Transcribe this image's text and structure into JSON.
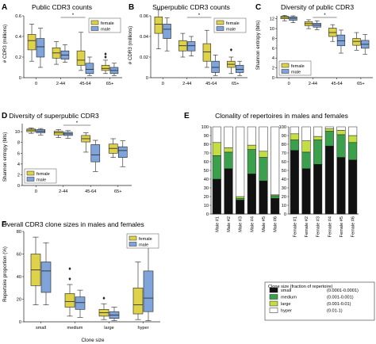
{
  "colors": {
    "female": "#ddd24a",
    "male": "#7fa4d9",
    "small": "#111111",
    "medium": "#3aa04b",
    "large": "#c3dd45",
    "hyper": "#ffffff"
  },
  "chart_data": [
    {
      "panel": "A",
      "type": "box",
      "title": "Public CDR3 counts",
      "xlabel": "",
      "ylabel": "# CDR3 (millions)",
      "categories": [
        "0",
        "2-44",
        "45-64",
        "65+"
      ],
      "ylim": [
        0,
        0.6
      ],
      "yticks": [
        0,
        0.2,
        0.4,
        0.6
      ],
      "grid": false,
      "legend": {
        "position": "top-right",
        "entries": [
          "female",
          "male"
        ]
      },
      "significance": {
        "between": [
          "2-44",
          "45-64"
        ],
        "label": "*"
      },
      "series": [
        {
          "name": "female",
          "boxes": [
            {
              "low": 0.16,
              "q1": 0.27,
              "median": 0.36,
              "q3": 0.42,
              "high": 0.52,
              "outliers": []
            },
            {
              "low": 0.13,
              "q1": 0.19,
              "median": 0.24,
              "q3": 0.29,
              "high": 0.35,
              "outliers": []
            },
            {
              "low": 0.07,
              "q1": 0.12,
              "median": 0.17,
              "q3": 0.26,
              "high": 0.44,
              "outliers": []
            },
            {
              "low": 0.04,
              "q1": 0.07,
              "median": 0.09,
              "q3": 0.12,
              "high": 0.17,
              "outliers": [
                0.2,
                0.23
              ]
            }
          ]
        },
        {
          "name": "male",
          "boxes": [
            {
              "low": 0.1,
              "q1": 0.2,
              "median": 0.3,
              "q3": 0.38,
              "high": 0.48,
              "outliers": []
            },
            {
              "low": 0.15,
              "q1": 0.18,
              "median": 0.22,
              "q3": 0.26,
              "high": 0.32,
              "outliers": []
            },
            {
              "low": 0.02,
              "q1": 0.04,
              "median": 0.08,
              "q3": 0.14,
              "high": 0.2,
              "outliers": []
            },
            {
              "low": 0.02,
              "q1": 0.04,
              "median": 0.07,
              "q3": 0.1,
              "high": 0.14,
              "outliers": []
            }
          ]
        }
      ]
    },
    {
      "panel": "B",
      "type": "box",
      "title": "Superpublic CDR3 counts",
      "xlabel": "",
      "ylabel": "# CDR3 (millions)",
      "categories": [
        "0",
        "2-44",
        "45-64",
        "65+"
      ],
      "ylim": [
        0,
        0.06
      ],
      "yticks": [
        0,
        0.02,
        0.04,
        0.06
      ],
      "grid": false,
      "legend": {
        "position": "top-right",
        "entries": [
          "female",
          "male"
        ]
      },
      "significance": {
        "between": [
          "2-44",
          "45-64"
        ],
        "label": "*"
      },
      "series": [
        {
          "name": "female",
          "boxes": [
            {
              "low": 0.028,
              "q1": 0.043,
              "median": 0.052,
              "q3": 0.059,
              "high": 0.066,
              "outliers": []
            },
            {
              "low": 0.02,
              "q1": 0.026,
              "median": 0.031,
              "q3": 0.036,
              "high": 0.043,
              "outliers": []
            },
            {
              "low": 0.01,
              "q1": 0.016,
              "median": 0.025,
              "q3": 0.033,
              "high": 0.046,
              "outliers": []
            },
            {
              "low": 0.004,
              "q1": 0.01,
              "median": 0.013,
              "q3": 0.016,
              "high": 0.02,
              "outliers": [
                0.027
              ]
            }
          ]
        },
        {
          "name": "male",
          "boxes": [
            {
              "low": 0.026,
              "q1": 0.038,
              "median": 0.047,
              "q3": 0.052,
              "high": 0.058,
              "outliers": []
            },
            {
              "low": 0.021,
              "q1": 0.026,
              "median": 0.031,
              "q3": 0.035,
              "high": 0.04,
              "outliers": []
            },
            {
              "low": 0.002,
              "q1": 0.005,
              "median": 0.01,
              "q3": 0.016,
              "high": 0.022,
              "outliers": []
            },
            {
              "low": 0.002,
              "q1": 0.005,
              "median": 0.008,
              "q3": 0.012,
              "high": 0.016,
              "outliers": []
            }
          ]
        }
      ]
    },
    {
      "panel": "C",
      "type": "box",
      "title": "Diversity of public CDR3",
      "xlabel": "",
      "ylabel": "Shannon entropy (bits)",
      "categories": [
        "0",
        "2-44",
        "45-64",
        "65+"
      ],
      "ylim": [
        0,
        12.6
      ],
      "yticks": [
        0,
        2,
        4,
        6,
        8,
        10,
        12
      ],
      "grid": false,
      "legend": {
        "position": "bottom-left",
        "entries": [
          "female",
          "male"
        ]
      },
      "significance": {
        "between": [
          "2-44",
          "45-64"
        ],
        "label": "*"
      },
      "series": [
        {
          "name": "female",
          "boxes": [
            {
              "low": 11.6,
              "q1": 12.0,
              "median": 12.3,
              "q3": 12.5,
              "high": 12.7,
              "outliers": []
            },
            {
              "low": 10.0,
              "q1": 10.6,
              "median": 11.0,
              "q3": 11.4,
              "high": 11.8,
              "outliers": []
            },
            {
              "low": 7.4,
              "q1": 8.4,
              "median": 9.2,
              "q3": 10.1,
              "high": 10.8,
              "outliers": []
            },
            {
              "low": 5.6,
              "q1": 6.6,
              "median": 7.4,
              "q3": 8.0,
              "high": 9.2,
              "outliers": []
            }
          ]
        },
        {
          "name": "male",
          "boxes": [
            {
              "low": 11.2,
              "q1": 11.7,
              "median": 12.1,
              "q3": 12.4,
              "high": 12.6,
              "outliers": []
            },
            {
              "low": 9.8,
              "q1": 10.3,
              "median": 10.7,
              "q3": 11.1,
              "high": 11.6,
              "outliers": []
            },
            {
              "low": 5.0,
              "q1": 6.5,
              "median": 7.5,
              "q3": 8.7,
              "high": 9.7,
              "outliers": []
            },
            {
              "low": 4.8,
              "q1": 6.0,
              "median": 6.8,
              "q3": 7.6,
              "high": 8.8,
              "outliers": []
            }
          ]
        }
      ]
    },
    {
      "panel": "D",
      "type": "box",
      "title": "Diversity of superpublic CDR3",
      "xlabel": "",
      "ylabel": "Shannon entropy (bits)",
      "categories": [
        "0",
        "2-44",
        "45-64",
        "65+"
      ],
      "ylim": [
        0,
        11.5
      ],
      "yticks": [
        0,
        2,
        4,
        6,
        8,
        10
      ],
      "grid": false,
      "legend": {
        "position": "bottom-left",
        "entries": [
          "female",
          "male"
        ]
      },
      "significance": {
        "between": [
          "2-44",
          "45-64"
        ],
        "label": "*"
      },
      "series": [
        {
          "name": "female",
          "boxes": [
            {
              "low": 9.7,
              "q1": 10.0,
              "median": 10.3,
              "q3": 10.5,
              "high": 10.7,
              "outliers": []
            },
            {
              "low": 8.9,
              "q1": 9.4,
              "median": 9.8,
              "q3": 10.1,
              "high": 10.4,
              "outliers": []
            },
            {
              "low": 6.2,
              "q1": 8.1,
              "median": 8.7,
              "q3": 9.3,
              "high": 9.8,
              "outliers": []
            },
            {
              "low": 5.2,
              "q1": 6.0,
              "median": 6.9,
              "q3": 7.7,
              "high": 8.7,
              "outliers": []
            }
          ]
        },
        {
          "name": "male",
          "boxes": [
            {
              "low": 9.4,
              "q1": 9.8,
              "median": 10.1,
              "q3": 10.4,
              "high": 10.6,
              "outliers": []
            },
            {
              "low": 8.8,
              "q1": 9.3,
              "median": 9.6,
              "q3": 9.9,
              "high": 10.2,
              "outliers": []
            },
            {
              "low": 2.6,
              "q1": 4.4,
              "median": 5.7,
              "q3": 7.6,
              "high": 8.4,
              "outliers": []
            },
            {
              "low": 3.5,
              "q1": 5.2,
              "median": 6.5,
              "q3": 7.2,
              "high": 8.3,
              "outliers": []
            }
          ]
        }
      ]
    },
    {
      "panel": "E",
      "type": "bar",
      "stacked": true,
      "title": "Clonality of repertoires in males and females",
      "xlabel": "",
      "ylabel": "",
      "ylim": [
        0,
        100
      ],
      "yticks": [
        0,
        10,
        20,
        30,
        40,
        50,
        60,
        70,
        80,
        90,
        100
      ],
      "grid": false,
      "series_names": [
        "small",
        "medium",
        "large",
        "hyper"
      ],
      "groups": [
        {
          "categories": [
            "Male #1",
            "Male #2",
            "Male #3",
            "Male #4",
            "Male #5",
            "Male #6"
          ],
          "series": [
            {
              "name": "small",
              "values": [
                40,
                52,
                16,
                46,
                38,
                18
              ]
            },
            {
              "name": "medium",
              "values": [
                27,
                19,
                2,
                28,
                27,
                3
              ]
            },
            {
              "name": "large",
              "values": [
                15,
                5,
                2,
                5,
                7,
                1
              ]
            },
            {
              "name": "hyper",
              "values": [
                18,
                24,
                80,
                21,
                28,
                78
              ]
            }
          ]
        },
        {
          "categories": [
            "Female #1",
            "Female #2",
            "Female #3",
            "Female #4",
            "Female #5",
            "Female #6"
          ],
          "series": [
            {
              "name": "small",
              "values": [
                73,
                52,
                57,
                78,
                65,
                62
              ]
            },
            {
              "name": "medium",
              "values": [
                12,
                19,
                28,
                17,
                26,
                20
              ]
            },
            {
              "name": "large",
              "values": [
                7,
                13,
                4,
                3,
                5,
                8
              ]
            },
            {
              "name": "hyper",
              "values": [
                8,
                16,
                11,
                2,
                4,
                10
              ]
            }
          ]
        }
      ],
      "legend": {
        "position": "bottom-right",
        "title": "Clone size (fraction of repertoire)",
        "entries": [
          {
            "name": "small",
            "range": "(0.0001-0.0001)"
          },
          {
            "name": "medium",
            "range": "(0.001-0.001)"
          },
          {
            "name": "large",
            "range": "(0.001-0.01)"
          },
          {
            "name": "hyper",
            "range": "(0.01-1)"
          }
        ]
      }
    },
    {
      "panel": "F",
      "type": "box",
      "title": "Overall CDR3 clone sizes in males and females",
      "xlabel": "Clone size",
      "ylabel": "Repertoire proportion (%)",
      "categories": [
        "small",
        "medium",
        "large",
        "hyper"
      ],
      "ylim": [
        0,
        80
      ],
      "yticks": [
        0,
        20,
        40,
        60,
        80
      ],
      "grid": false,
      "legend": {
        "position": "top-right",
        "entries": [
          "female",
          "male"
        ]
      },
      "series": [
        {
          "name": "female",
          "boxes": [
            {
              "low": 15,
              "q1": 32,
              "median": 46,
              "q3": 60,
              "high": 75,
              "outliers": []
            },
            {
              "low": 5,
              "q1": 13,
              "median": 18,
              "q3": 25,
              "high": 33,
              "outliers": [
                38,
                47
              ]
            },
            {
              "low": 2,
              "q1": 5,
              "median": 8,
              "q3": 11,
              "high": 16,
              "outliers": [
                21
              ]
            },
            {
              "low": 2,
              "q1": 7,
              "median": 15,
              "q3": 30,
              "high": 53,
              "outliers": []
            }
          ]
        },
        {
          "name": "male",
          "boxes": [
            {
              "low": 15,
              "q1": 26,
              "median": 45,
              "q3": 53,
              "high": 70,
              "outliers": []
            },
            {
              "low": 4,
              "q1": 11,
              "median": 17,
              "q3": 22,
              "high": 28,
              "outliers": []
            },
            {
              "low": 1,
              "q1": 3,
              "median": 6,
              "q3": 9,
              "high": 13,
              "outliers": []
            },
            {
              "low": 1,
              "q1": 9,
              "median": 21,
              "q3": 45,
              "high": 70,
              "outliers": []
            }
          ]
        }
      ]
    }
  ]
}
